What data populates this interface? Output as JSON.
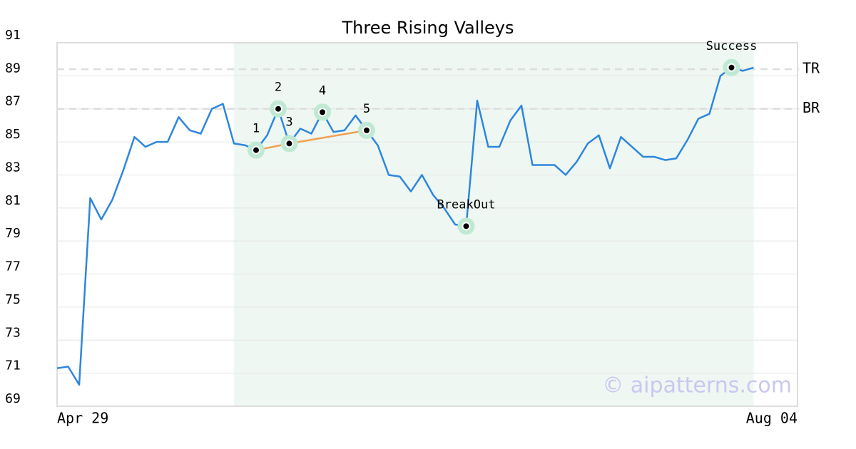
{
  "chart_data": {
    "type": "line",
    "title": "Three Rising Valleys",
    "x_start_label": "Apr 29",
    "x_end_label": "Aug 04",
    "values": [
      71.3,
      71.4,
      70.3,
      81.6,
      80.3,
      81.5,
      83.3,
      85.3,
      84.7,
      85.0,
      85.0,
      86.5,
      85.7,
      85.5,
      87.0,
      87.3,
      84.9,
      84.8,
      84.5,
      85.4,
      87.0,
      84.9,
      85.8,
      85.5,
      86.8,
      85.6,
      85.7,
      86.6,
      85.7,
      84.8,
      83.0,
      82.9,
      82.0,
      83.0,
      81.8,
      81.0,
      80.0,
      79.9,
      87.5,
      84.7,
      84.7,
      86.3,
      87.2,
      83.6,
      83.6,
      83.6,
      83.0,
      83.8,
      84.9,
      85.4,
      83.4,
      85.3,
      84.7,
      84.1,
      84.1,
      83.9,
      84.0,
      85.1,
      86.4,
      86.7,
      89.0,
      89.5,
      89.3,
      89.5
    ],
    "color": "#2e86de",
    "ylim": [
      69,
      91
    ],
    "yticks": [
      69,
      71,
      73,
      75,
      77,
      79,
      81,
      83,
      85,
      87,
      89,
      91
    ],
    "grid": true,
    "shaded": {
      "from": 16,
      "to": 63,
      "color": "#eef7f2"
    },
    "ref_lines": [
      {
        "label": "TR",
        "value": 89.4
      },
      {
        "label": "BR",
        "value": 87.0
      }
    ],
    "annotations": [
      {
        "label": "1",
        "index": 18
      },
      {
        "label": "2",
        "index": 20
      },
      {
        "label": "3",
        "index": 21
      },
      {
        "label": "4",
        "index": 24
      },
      {
        "label": "5",
        "index": 28
      },
      {
        "label": "BreakOut",
        "index": 37
      },
      {
        "label": "Success",
        "index": 61
      }
    ],
    "trendline": {
      "indices": [
        18,
        21,
        28
      ],
      "color": "#f0a050"
    },
    "watermark": "© aipatterns.com"
  }
}
